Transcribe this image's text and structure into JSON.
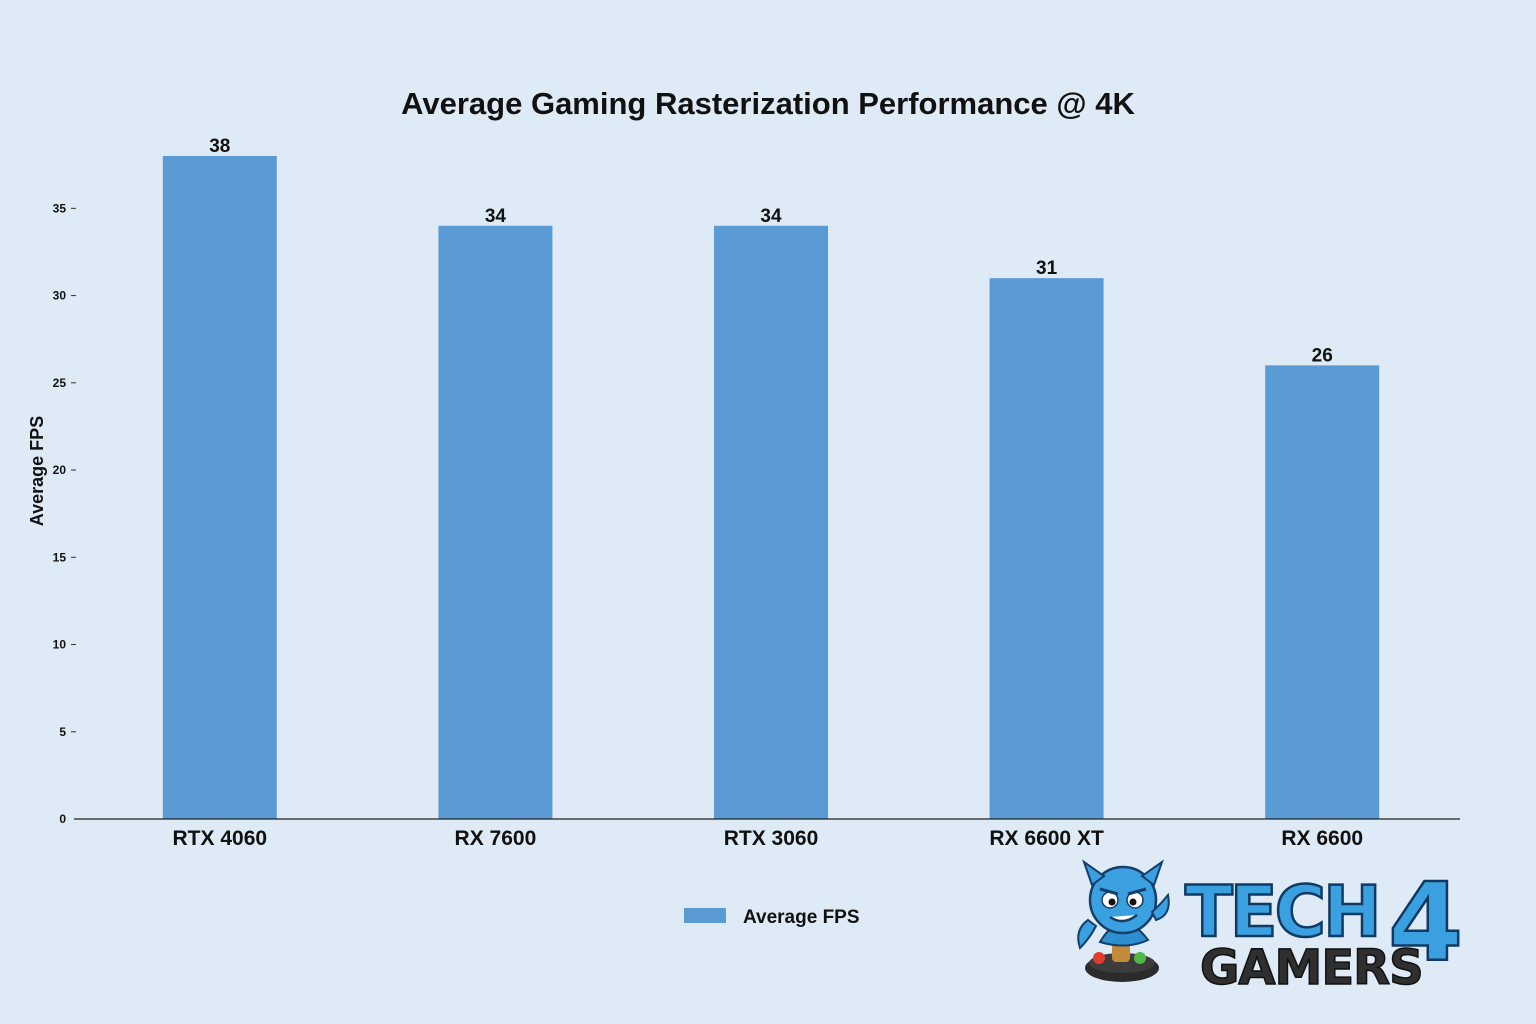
{
  "chart_data": {
    "type": "bar",
    "title": "Average Gaming Rasterization Performance @ 4K",
    "ylabel": "Average FPS",
    "xlabel": "",
    "categories": [
      "RTX 4060",
      "RX 7600",
      "RTX 3060",
      "RX 6600 XT",
      "RX 6600"
    ],
    "series": [
      {
        "name": "Average FPS",
        "values": [
          38,
          34,
          34,
          31,
          26
        ],
        "color": "#5b9bd5"
      }
    ],
    "ylim": [
      0,
      38
    ],
    "yticks": [
      0,
      5,
      10,
      15,
      20,
      25,
      30,
      35
    ],
    "grid": false,
    "legend_position": "bottom-center"
  },
  "logo": {
    "line1": "TECH",
    "digit": "4",
    "line2": "GAMERS",
    "mascot_icon": "devil-mascot-joystick-icon"
  }
}
